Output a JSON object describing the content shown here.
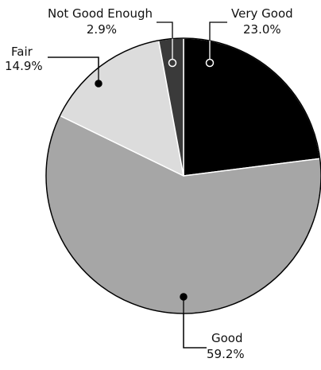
{
  "chart_data": {
    "type": "pie",
    "slices": [
      {
        "label": "Very Good",
        "pct_text": "23.0%",
        "value": 23.0,
        "color": "#000000",
        "callout": "top-right",
        "dot": "#ffffff"
      },
      {
        "label": "Good",
        "pct_text": "59.2%",
        "value": 59.2,
        "color": "#a6a6a6",
        "callout": "bottom",
        "dot": "#000000"
      },
      {
        "label": "Fair",
        "pct_text": "14.9%",
        "value": 14.9,
        "color": "#dcdcdc",
        "callout": "top-left",
        "dot": "#000000"
      },
      {
        "label": "Not Good Enough",
        "pct_text": "2.9%",
        "value": 2.9,
        "color": "#3a3a3a",
        "callout": "top",
        "dot": "#ffffff"
      }
    ],
    "start_angle_deg": 0,
    "direction": "clockwise",
    "outline_color": "#000000",
    "separator_color": "#ffffff"
  }
}
